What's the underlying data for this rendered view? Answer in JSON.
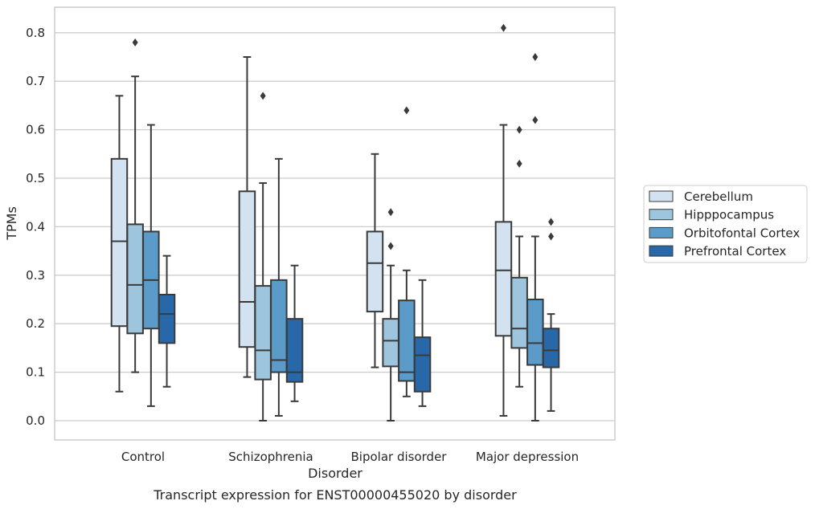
{
  "chart_data": {
    "type": "box",
    "title": "",
    "caption": "Transcript expression for ENST00000455020 by disorder",
    "xlabel": "Disorder",
    "ylabel": "TPMs",
    "ylim": [
      -0.04,
      0.85
    ],
    "yticks": [
      "0.0",
      "0.1",
      "0.2",
      "0.3",
      "0.4",
      "0.5",
      "0.6",
      "0.7",
      "0.8"
    ],
    "grid": true,
    "legend_position": "right",
    "categories": [
      "Control",
      "Schizophrenia",
      "Bipolar disorder",
      "Major depression"
    ],
    "series": [
      {
        "name": "Cerebellum",
        "color": "#d3e2f1",
        "boxes": [
          {
            "whisker_low": 0.06,
            "q1": 0.195,
            "median": 0.37,
            "q3": 0.54,
            "whisker_high": 0.67,
            "outliers": []
          },
          {
            "whisker_low": 0.09,
            "q1": 0.152,
            "median": 0.245,
            "q3": 0.473,
            "whisker_high": 0.75,
            "outliers": []
          },
          {
            "whisker_low": 0.11,
            "q1": 0.225,
            "median": 0.325,
            "q3": 0.39,
            "whisker_high": 0.55,
            "outliers": []
          },
          {
            "whisker_low": 0.01,
            "q1": 0.175,
            "median": 0.31,
            "q3": 0.41,
            "whisker_high": 0.61,
            "outliers": [
              0.81
            ]
          }
        ]
      },
      {
        "name": "Hipppocampus",
        "color": "#9dc5de",
        "boxes": [
          {
            "whisker_low": 0.1,
            "q1": 0.18,
            "median": 0.28,
            "q3": 0.405,
            "whisker_high": 0.71,
            "outliers": [
              0.78
            ]
          },
          {
            "whisker_low": 0.0,
            "q1": 0.085,
            "median": 0.145,
            "q3": 0.278,
            "whisker_high": 0.49,
            "outliers": [
              0.67
            ]
          },
          {
            "whisker_low": 0.0,
            "q1": 0.112,
            "median": 0.165,
            "q3": 0.21,
            "whisker_high": 0.32,
            "outliers": [
              0.36,
              0.43
            ]
          },
          {
            "whisker_low": 0.07,
            "q1": 0.15,
            "median": 0.19,
            "q3": 0.295,
            "whisker_high": 0.38,
            "outliers": [
              0.53,
              0.6
            ]
          }
        ]
      },
      {
        "name": "Orbitofontal Cortex",
        "color": "#5a9bc9",
        "boxes": [
          {
            "whisker_low": 0.03,
            "q1": 0.19,
            "median": 0.29,
            "q3": 0.39,
            "whisker_high": 0.61,
            "outliers": []
          },
          {
            "whisker_low": 0.01,
            "q1": 0.1,
            "median": 0.125,
            "q3": 0.29,
            "whisker_high": 0.54,
            "outliers": []
          },
          {
            "whisker_low": 0.05,
            "q1": 0.082,
            "median": 0.1,
            "q3": 0.248,
            "whisker_high": 0.31,
            "outliers": [
              0.64
            ]
          },
          {
            "whisker_low": 0.0,
            "q1": 0.115,
            "median": 0.16,
            "q3": 0.25,
            "whisker_high": 0.38,
            "outliers": [
              0.62,
              0.75
            ]
          }
        ]
      },
      {
        "name": "Prefrontal Cortex",
        "color": "#2868a8",
        "boxes": [
          {
            "whisker_low": 0.07,
            "q1": 0.16,
            "median": 0.22,
            "q3": 0.26,
            "whisker_high": 0.34,
            "outliers": []
          },
          {
            "whisker_low": 0.04,
            "q1": 0.08,
            "median": 0.1,
            "q3": 0.21,
            "whisker_high": 0.32,
            "outliers": []
          },
          {
            "whisker_low": 0.03,
            "q1": 0.06,
            "median": 0.135,
            "q3": 0.172,
            "whisker_high": 0.29,
            "outliers": []
          },
          {
            "whisker_low": 0.02,
            "q1": 0.11,
            "median": 0.145,
            "q3": 0.19,
            "whisker_high": 0.22,
            "outliers": [
              0.38,
              0.41
            ]
          }
        ]
      }
    ]
  }
}
